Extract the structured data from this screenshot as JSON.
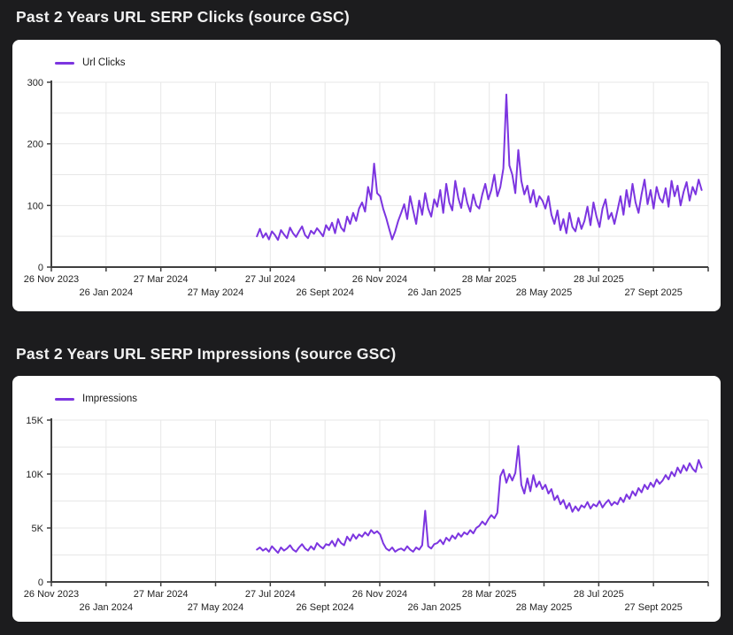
{
  "page": {
    "background": "#1c1c1e",
    "card_background": "#ffffff",
    "title_color": "#f2f2f2"
  },
  "chart_data": [
    {
      "type": "line",
      "title": "Past 2 Years URL SERP Clicks (source GSC)",
      "legend_position": "top-left",
      "grid": true,
      "color": "#7c35e0",
      "ylim": [
        0,
        300
      ],
      "grid_step": 50,
      "ylabel": "",
      "xlabel": "",
      "y_ticks": [
        {
          "label": "0",
          "value": 0
        },
        {
          "label": "100",
          "value": 100
        },
        {
          "label": "200",
          "value": 200
        },
        {
          "label": "300",
          "value": 300
        }
      ],
      "x_ticks": [
        {
          "label": "26 Nov 2023",
          "row": 0
        },
        {
          "label": "26 Jan 2024",
          "row": 1
        },
        {
          "label": "27 Mar 2024",
          "row": 0
        },
        {
          "label": "27 May 2024",
          "row": 1
        },
        {
          "label": "27 Jul 2024",
          "row": 0
        },
        {
          "label": "26 Sept 2024",
          "row": 1
        },
        {
          "label": "26 Nov 2024",
          "row": 0
        },
        {
          "label": "26 Jan 2025",
          "row": 1
        },
        {
          "label": "28 Mar 2025",
          "row": 0
        },
        {
          "label": "28 May 2025",
          "row": 1
        },
        {
          "label": "28 Jul 2025",
          "row": 0
        },
        {
          "label": "27 Sept 2025",
          "row": 1
        }
      ],
      "series": [
        {
          "name": "Url Clicks",
          "start_frac": 0.313,
          "end_frac": 0.99,
          "values": [
            50,
            62,
            48,
            55,
            45,
            58,
            52,
            44,
            60,
            53,
            47,
            64,
            55,
            49,
            58,
            66,
            52,
            47,
            59,
            54,
            63,
            57,
            50,
            68,
            60,
            72,
            55,
            78,
            64,
            58,
            82,
            70,
            88,
            75,
            95,
            105,
            90,
            130,
            110,
            168,
            120,
            115,
            95,
            80,
            62,
            45,
            58,
            75,
            88,
            102,
            78,
            115,
            92,
            70,
            108,
            85,
            120,
            95,
            82,
            110,
            98,
            125,
            88,
            135,
            105,
            92,
            140,
            112,
            96,
            128,
            104,
            90,
            118,
            100,
            95,
            118,
            135,
            110,
            125,
            150,
            115,
            130,
            160,
            280,
            165,
            150,
            120,
            190,
            140,
            118,
            132,
            105,
            125,
            98,
            115,
            108,
            95,
            115,
            85,
            70,
            92,
            60,
            78,
            55,
            88,
            65,
            58,
            80,
            62,
            75,
            98,
            68,
            105,
            82,
            65,
            95,
            110,
            78,
            88,
            70,
            92,
            115,
            85,
            125,
            98,
            135,
            105,
            88,
            118,
            142,
            102,
            125,
            95,
            130,
            112,
            105,
            128,
            98,
            140,
            115,
            132,
            100,
            122,
            138,
            108,
            130,
            118,
            142,
            125
          ]
        }
      ]
    },
    {
      "type": "line",
      "title": "Past 2 Years URL SERP Impressions (source GSC)",
      "legend_position": "top-left",
      "grid": true,
      "color": "#7c35e0",
      "unit": "K",
      "ylim": [
        0,
        15
      ],
      "grid_step": 2.5,
      "ylabel": "",
      "xlabel": "",
      "y_ticks": [
        {
          "label": "0",
          "value": 0
        },
        {
          "label": "5K",
          "value": 5
        },
        {
          "label": "10K",
          "value": 10
        },
        {
          "label": "15K",
          "value": 15
        }
      ],
      "x_ticks": [
        {
          "label": "26 Nov 2023",
          "row": 0
        },
        {
          "label": "26 Jan 2024",
          "row": 1
        },
        {
          "label": "27 Mar 2024",
          "row": 0
        },
        {
          "label": "27 May 2024",
          "row": 1
        },
        {
          "label": "27 Jul 2024",
          "row": 0
        },
        {
          "label": "26 Sept 2024",
          "row": 1
        },
        {
          "label": "26 Nov 2024",
          "row": 0
        },
        {
          "label": "26 Jan 2025",
          "row": 1
        },
        {
          "label": "28 Mar 2025",
          "row": 0
        },
        {
          "label": "28 May 2025",
          "row": 1
        },
        {
          "label": "28 Jul 2025",
          "row": 0
        },
        {
          "label": "27 Sept 2025",
          "row": 1
        }
      ],
      "series": [
        {
          "name": "Impressions",
          "start_frac": 0.313,
          "end_frac": 0.99,
          "values": [
            3.0,
            3.2,
            2.9,
            3.1,
            2.8,
            3.3,
            3.0,
            2.7,
            3.2,
            2.9,
            3.1,
            3.4,
            3.0,
            2.8,
            3.2,
            3.5,
            3.1,
            2.9,
            3.3,
            3.0,
            3.6,
            3.3,
            3.1,
            3.5,
            3.4,
            3.8,
            3.3,
            4.0,
            3.6,
            3.4,
            4.2,
            3.8,
            4.4,
            4.0,
            4.4,
            4.2,
            4.6,
            4.3,
            4.8,
            4.5,
            4.7,
            4.4,
            3.6,
            3.1,
            2.9,
            3.2,
            2.8,
            3.0,
            3.1,
            2.9,
            3.3,
            3.0,
            2.8,
            3.2,
            3.0,
            3.4,
            6.6,
            3.3,
            3.1,
            3.5,
            3.6,
            3.9,
            3.5,
            4.1,
            3.8,
            4.3,
            4.0,
            4.5,
            4.2,
            4.6,
            4.4,
            4.8,
            4.5,
            5.0,
            5.2,
            5.6,
            5.3,
            5.8,
            6.2,
            5.9,
            6.4,
            9.8,
            10.4,
            9.2,
            10.0,
            9.4,
            10.1,
            12.6,
            9.0,
            8.2,
            9.6,
            8.4,
            9.9,
            8.8,
            9.3,
            8.6,
            9.0,
            8.2,
            8.6,
            7.6,
            8.0,
            7.2,
            7.6,
            6.8,
            7.3,
            6.5,
            7.0,
            6.6,
            7.1,
            6.9,
            7.4,
            6.8,
            7.2,
            7.0,
            7.5,
            6.9,
            7.3,
            7.6,
            7.1,
            7.4,
            7.2,
            7.8,
            7.4,
            8.1,
            7.7,
            8.4,
            8.0,
            8.7,
            8.3,
            9.0,
            8.6,
            9.2,
            8.8,
            9.5,
            9.1,
            9.4,
            9.9,
            9.5,
            10.2,
            9.8,
            10.6,
            10.1,
            10.8,
            10.3,
            11.0,
            10.5,
            10.2,
            11.3,
            10.6
          ]
        }
      ]
    }
  ]
}
